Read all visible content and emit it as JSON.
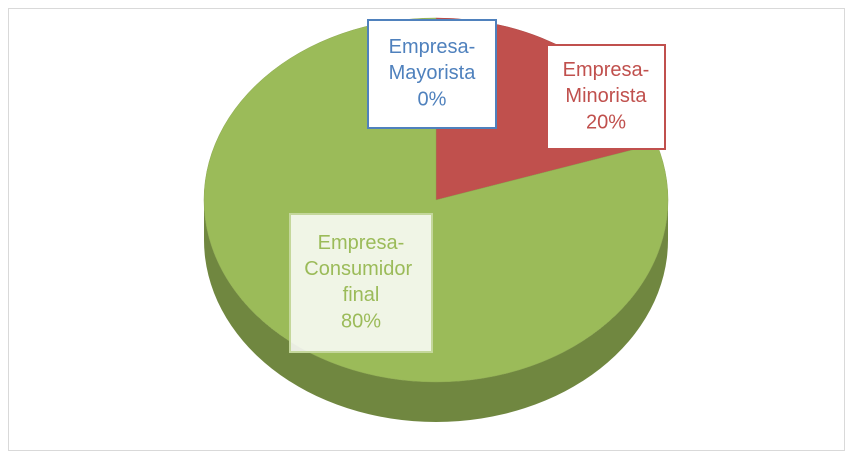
{
  "chart_data": {
    "type": "pie",
    "categories": [
      "Empresa-Mayorista",
      "Empresa-Minorista",
      "Empresa-Consumidor final"
    ],
    "values": [
      0,
      20,
      80
    ],
    "value_labels": [
      "0%",
      "20%",
      "80%"
    ],
    "colors": [
      "#4f81bd",
      "#c0504d",
      "#9bbb59"
    ]
  }
}
